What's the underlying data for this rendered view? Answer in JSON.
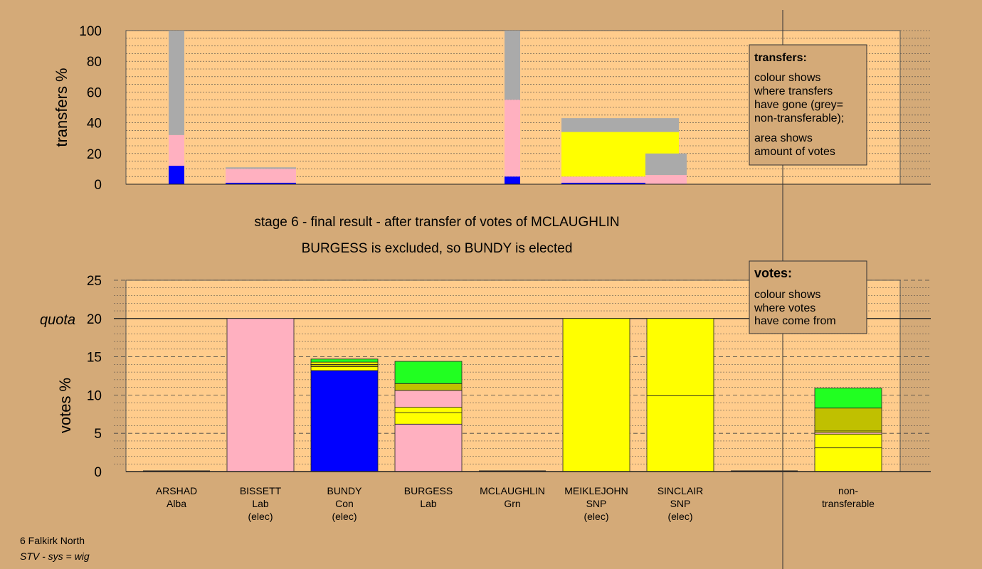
{
  "footer": {
    "line1": "6 Falkirk North",
    "line2": "STV - sys = wig"
  },
  "chart_data": [
    {
      "type": "bar",
      "stacked": true,
      "ylabel": "transfers %",
      "ylim": [
        0,
        100
      ],
      "yticks": [
        0,
        20,
        40,
        60,
        80,
        100
      ],
      "legend": {
        "title": "transfers:",
        "lines": [
          "colour shows",
          "where transfers",
          "have gone (grey=",
          "non-transferable);",
          "area shows",
          "amount of votes"
        ]
      },
      "bars": [
        {
          "name": "ARSHAD",
          "width_pct": 0.1,
          "segments": [
            {
              "value": 12,
              "color": "#0000ff"
            },
            {
              "value": 20,
              "color": "#ffb0c0"
            },
            {
              "value": 68,
              "color": "#aaaaaa"
            }
          ]
        },
        {
          "name": "BISSETT",
          "width_pct": 0.5,
          "segments": [
            {
              "value": 1,
              "color": "#0000ff"
            },
            {
              "value": 9,
              "color": "#ffb0c0"
            },
            {
              "value": 1,
              "color": "#aaaaaa"
            }
          ]
        },
        {
          "name": "MCLAUGHLIN",
          "width_pct": 0.1,
          "segments": [
            {
              "value": 5,
              "color": "#0000ff"
            },
            {
              "value": 50,
              "color": "#ffb0c0"
            },
            {
              "value": 45,
              "color": "#aaaaaa"
            }
          ]
        },
        {
          "name": "MEIKLEJOHN",
          "width_pct": 0.5,
          "segments": [
            {
              "value": 1,
              "color": "#0000ff"
            },
            {
              "value": 4,
              "color": "#ffb0c0"
            },
            {
              "value": 29,
              "color": "#ffff00"
            },
            {
              "value": 9,
              "color": "#aaaaaa"
            }
          ]
        },
        {
          "name": "SINCLAIR",
          "width_pct": 0.18,
          "segments": [
            {
              "value": 6,
              "color": "#ffb0c0"
            },
            {
              "value": 14,
              "color": "#aaaaaa"
            }
          ]
        }
      ]
    },
    {
      "type": "bar",
      "stacked": true,
      "title": "stage 6 - final result - after transfer of votes of MCLAUGHLIN",
      "subtitle": "BURGESS is excluded, so BUNDY is elected",
      "ylabel": "votes %",
      "ylim": [
        0,
        25
      ],
      "yticks": [
        0,
        5,
        10,
        15,
        20,
        25
      ],
      "quota": 20,
      "quota_label": "quota",
      "legend": {
        "title": "votes:",
        "lines": [
          "colour shows",
          "where votes",
          "have come from"
        ]
      },
      "categories": [
        {
          "name": "ARSHAD",
          "party": "Alba",
          "status": ""
        },
        {
          "name": "BISSETT",
          "party": "Lab",
          "status": "(elec)"
        },
        {
          "name": "BUNDY",
          "party": "Con",
          "status": "(elec)"
        },
        {
          "name": "BURGESS",
          "party": "Lab",
          "status": ""
        },
        {
          "name": "MCLAUGHLIN",
          "party": "Grn",
          "status": ""
        },
        {
          "name": "MEIKLEJOHN",
          "party": "SNP",
          "status": "(elec)"
        },
        {
          "name": "SINCLAIR",
          "party": "SNP",
          "status": "(elec)"
        },
        {
          "name": "",
          "party": "",
          "status": ""
        },
        {
          "name": "non-",
          "party": "transferable",
          "status": ""
        }
      ],
      "stacks": [
        [],
        [
          {
            "value": 20,
            "color": "#ffb0c0"
          }
        ],
        [
          {
            "value": 13.2,
            "color": "#0000ff"
          },
          {
            "value": 0.5,
            "color": "#ffff00"
          },
          {
            "value": 0.3,
            "color": "#c0c000"
          },
          {
            "value": 0.3,
            "color": "#ffff00"
          },
          {
            "value": 0.4,
            "color": "#21ff21"
          }
        ],
        [
          {
            "value": 6.2,
            "color": "#ffb0c0"
          },
          {
            "value": 1.5,
            "color": "#ffff00"
          },
          {
            "value": 0.7,
            "color": "#ffff00"
          },
          {
            "value": 2.2,
            "color": "#ffb0c0"
          },
          {
            "value": 0.9,
            "color": "#c0c000"
          },
          {
            "value": 2.9,
            "color": "#21ff21"
          }
        ],
        [],
        [
          {
            "value": 20,
            "color": "#ffff00"
          }
        ],
        [
          {
            "value": 9.9,
            "color": "#ffff00"
          },
          {
            "value": 10.1,
            "color": "#ffff00"
          }
        ],
        [],
        [
          {
            "value": 3.1,
            "color": "#ffff00"
          },
          {
            "value": 1.8,
            "color": "#ffff00"
          },
          {
            "value": 0.2,
            "color": "#ffb0c0"
          },
          {
            "value": 0.2,
            "color": "#ffff00"
          },
          {
            "value": 3.0,
            "color": "#c0c000"
          },
          {
            "value": 2.6,
            "color": "#21ff21"
          }
        ]
      ]
    }
  ]
}
